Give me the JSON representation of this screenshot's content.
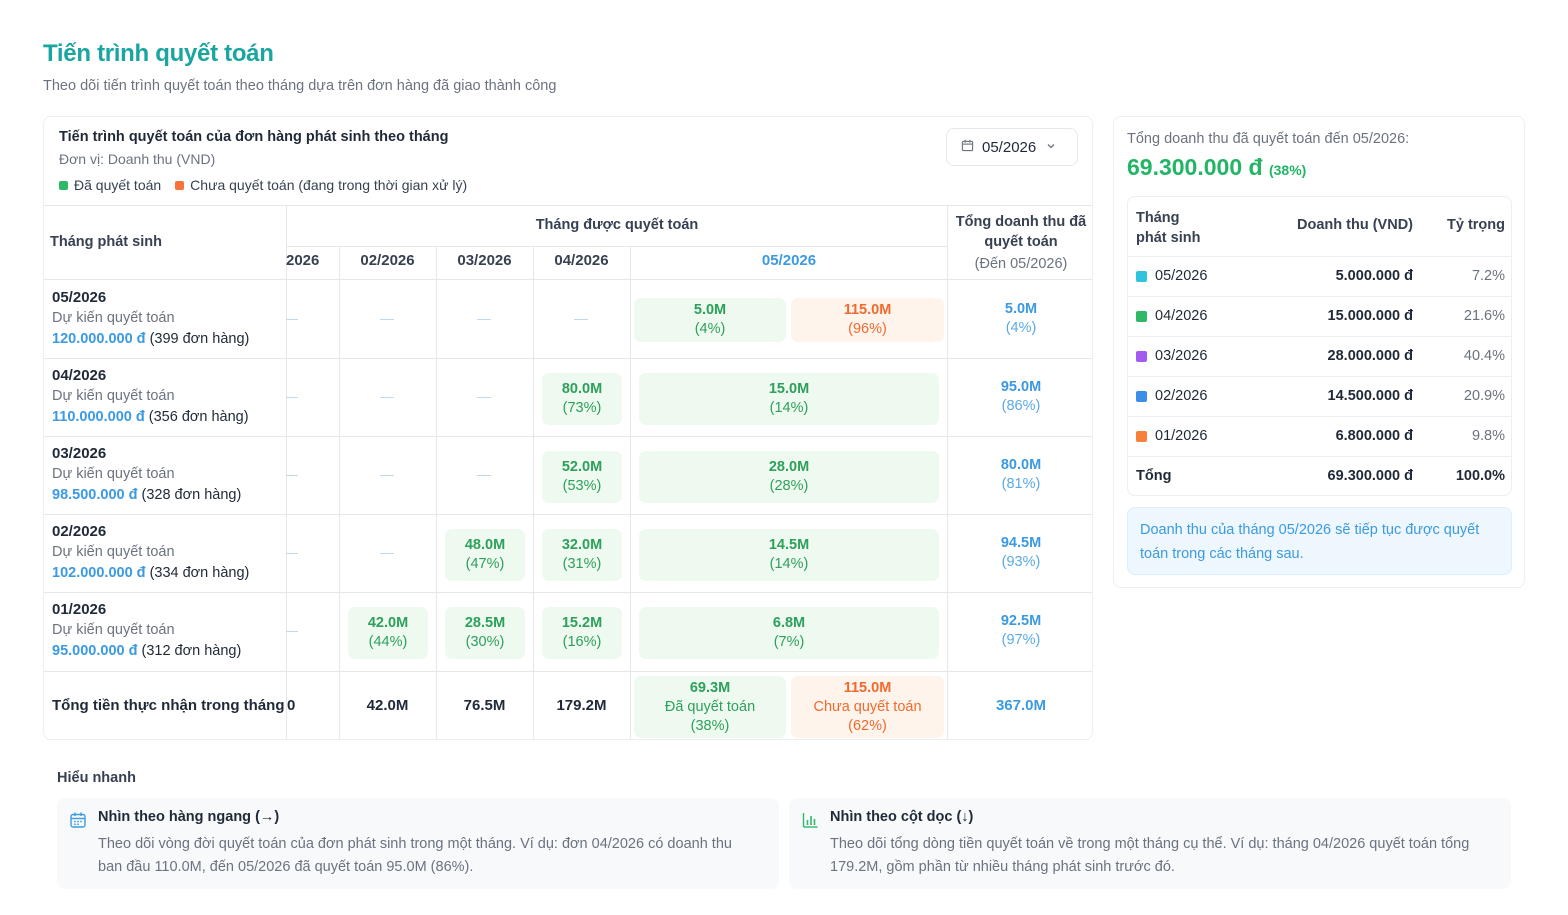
{
  "page": {
    "title": "Tiến trình quyết toán",
    "subtitle": "Theo dõi tiến trình quyết toán theo tháng dựa trên đơn hàng đã giao thành công"
  },
  "main_card": {
    "title": "Tiến trình quyết toán của đơn hàng phát sinh theo tháng",
    "unit": "Đơn vị: Doanh thu (VND)",
    "legend": [
      {
        "label": "Đã quyết toán",
        "color": "#2fb868"
      },
      {
        "label": "Chưa quyết toán (đang trong thời gian xử lý)",
        "color": "#f7733a"
      }
    ],
    "month_select": "05/2026",
    "header": {
      "row_label": "Tháng phát sinh",
      "group_label": "Tháng được quyết toán",
      "total_label_1": "Tổng doanh thu đã",
      "total_label_2": "quyết toán",
      "total_sub": "(Đến 05/2026)",
      "columns": [
        "2026",
        "02/2026",
        "03/2026",
        "04/2026",
        "05/2026"
      ]
    },
    "rows": [
      {
        "month": "05/2026",
        "desc": "Dự kiến quyết toán",
        "amount": "120.000.000 đ",
        "orders": "(399 đơn hàng)",
        "c04": null,
        "c05_done": "5.0M",
        "c05_done_pct": "(4%)",
        "c05_pending": "115.0M",
        "c05_pending_pct": "(96%)",
        "total": "5.0M",
        "total_pct": "(4%)"
      },
      {
        "month": "04/2026",
        "desc": "Dự kiến quyết toán",
        "amount": "110.000.000 đ",
        "orders": "(356 đơn hàng)",
        "c04": {
          "v": "80.0M",
          "p": "(73%)"
        },
        "c05": {
          "v": "15.0M",
          "p": "(14%)"
        },
        "total": "95.0M",
        "total_pct": "(86%)"
      },
      {
        "month": "03/2026",
        "desc": "Dự kiến quyết toán",
        "amount": "98.500.000 đ",
        "orders": "(328 đơn hàng)",
        "c04": {
          "v": "52.0M",
          "p": "(53%)"
        },
        "c05": {
          "v": "28.0M",
          "p": "(28%)"
        },
        "total": "80.0M",
        "total_pct": "(81%)"
      },
      {
        "month": "02/2026",
        "desc": "Dự kiến quyết toán",
        "amount": "102.000.000 đ",
        "orders": "(334 đơn hàng)",
        "c03": {
          "v": "48.0M",
          "p": "(47%)"
        },
        "c04": {
          "v": "32.0M",
          "p": "(31%)"
        },
        "c05": {
          "v": "14.5M",
          "p": "(14%)"
        },
        "total": "94.5M",
        "total_pct": "(93%)"
      },
      {
        "month": "01/2026",
        "desc": "Dự kiến quyết toán",
        "amount": "95.000.000 đ",
        "orders": "(312 đơn hàng)",
        "c02": {
          "v": "42.0M",
          "p": "(44%)"
        },
        "c03": {
          "v": "28.5M",
          "p": "(30%)"
        },
        "c04": {
          "v": "15.2M",
          "p": "(16%)"
        },
        "c05": {
          "v": "6.8M",
          "p": "(7%)"
        },
        "total": "92.5M",
        "total_pct": "(97%)"
      }
    ],
    "footer": {
      "label": "Tổng tiền thực nhận trong tháng",
      "c01": "0",
      "c02": "42.0M",
      "c03": "76.5M",
      "c04": "179.2M",
      "c05_done": "69.3M",
      "c05_done_text": "Đã quyết toán",
      "c05_done_pct": "(38%)",
      "c05_pending": "115.0M",
      "c05_pending_text": "Chưa quyết toán",
      "c05_pending_pct": "(62%)",
      "total": "367.0M"
    }
  },
  "side_card": {
    "label": "Tổng doanh thu đã quyết toán đến 05/2026:",
    "total": "69.300.000 đ",
    "total_pct": "(38%)",
    "table_header": {
      "col1_line1": "Tháng",
      "col1_line2": "phát sinh",
      "col2": "Doanh thu (VND)",
      "col3": "Tỷ trọng"
    },
    "rows": [
      {
        "month": "05/2026",
        "amount": "5.000.000 đ",
        "share": "7.2%",
        "color": "#2ec4dc"
      },
      {
        "month": "04/2026",
        "amount": "15.000.000 đ",
        "share": "21.6%",
        "color": "#2fb868"
      },
      {
        "month": "03/2026",
        "amount": "28.000.000 đ",
        "share": "40.4%",
        "color": "#a35bf0"
      },
      {
        "month": "02/2026",
        "amount": "14.500.000 đ",
        "share": "20.9%",
        "color": "#3b8fe8"
      },
      {
        "month": "01/2026",
        "amount": "6.800.000 đ",
        "share": "9.8%",
        "color": "#f7813a"
      }
    ],
    "total_row": {
      "label": "Tổng",
      "amount": "69.300.000 đ",
      "share": "100.0%"
    },
    "note": "Doanh thu của tháng 05/2026 sẽ tiếp tục được quyết toán trong các tháng sau."
  },
  "quick": {
    "title": "Hiểu nhanh",
    "horizontal": {
      "icon": "calendar-icon",
      "heading": "Nhìn theo hàng ngang (→)",
      "body": "Theo dõi vòng đời quyết toán của đơn phát sinh trong một tháng. Ví dụ: đơn 04/2026 có doanh thu ban đầu 110.0M, đến 05/2026 đã quyết toán 95.0M (86%)."
    },
    "vertical": {
      "icon": "bar-chart-icon",
      "heading": "Nhìn theo cột dọc (↓)",
      "body": "Theo dõi tổng dòng tiền quyết toán về trong một tháng cụ thể. Ví dụ: tháng 04/2026 quyết toán tổng 179.2M, gồm phần từ nhiều tháng phát sinh trước đó."
    }
  }
}
